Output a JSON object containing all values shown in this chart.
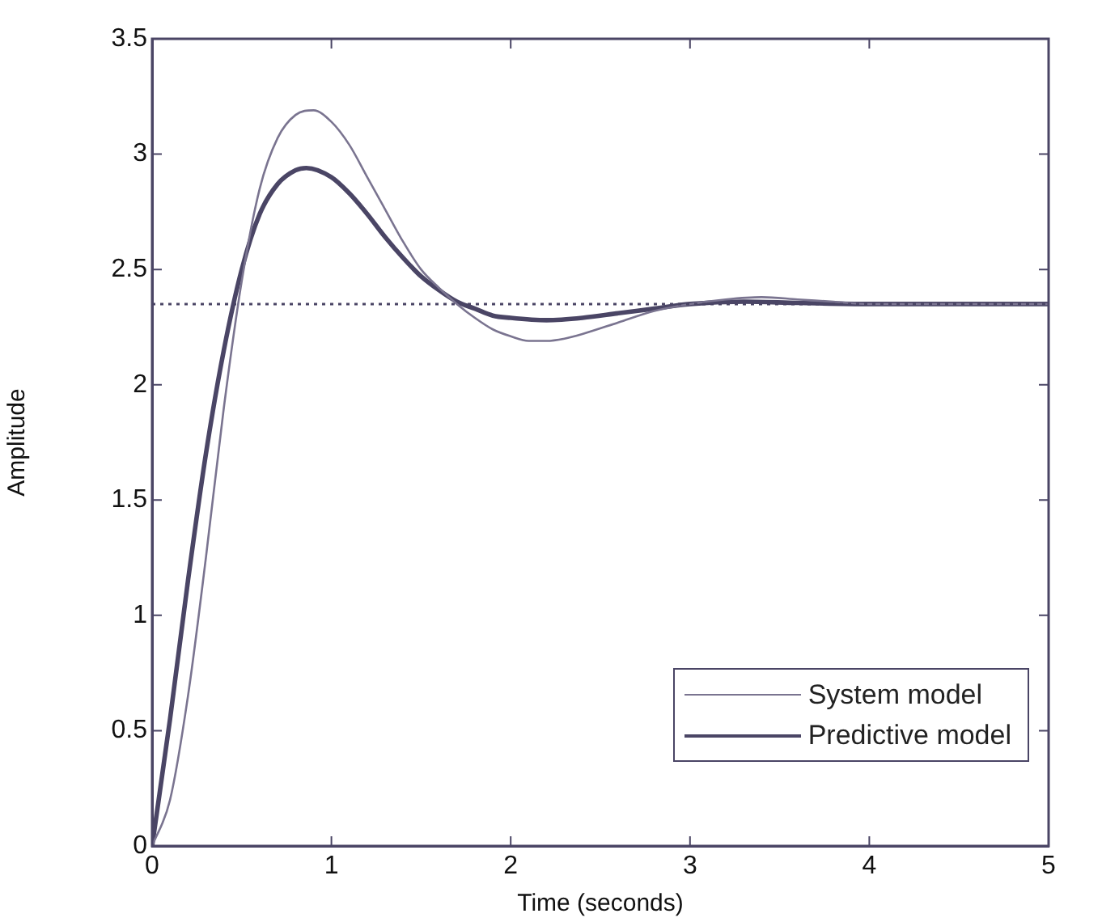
{
  "chart_data": {
    "type": "line",
    "xlabel": "Time (seconds)",
    "ylabel": "Amplitude",
    "xlim": [
      0,
      5
    ],
    "xticks": [
      0,
      1,
      2,
      3,
      4,
      5
    ],
    "ylim": [
      0,
      3.5
    ],
    "yticks": [
      0,
      0.5,
      1,
      1.5,
      2,
      2.5,
      3,
      3.5
    ],
    "grid": false,
    "legend": "bottom right",
    "marker": "none",
    "line_style": "solid",
    "ref_lines": [
      {
        "axis": "y",
        "value": 2.35,
        "line_style": "dotted",
        "color": "#4a4565"
      }
    ],
    "series": [
      {
        "name": "System model",
        "color": "#7a7490",
        "x": [
          0,
          0.1,
          0.2,
          0.3,
          0.4,
          0.5,
          0.6,
          0.7,
          0.8,
          0.9,
          1.0,
          1.1,
          1.2,
          1.3,
          1.4,
          1.5,
          1.6,
          1.7,
          1.8,
          1.9,
          2.0,
          2.1,
          2.2,
          2.3,
          2.4,
          2.6,
          2.8,
          3.0,
          3.2,
          3.4,
          3.6,
          3.8,
          4.0,
          5.0
        ],
        "values": [
          0,
          0.2,
          0.65,
          1.25,
          1.9,
          2.45,
          2.85,
          3.07,
          3.17,
          3.19,
          3.14,
          3.04,
          2.9,
          2.76,
          2.62,
          2.5,
          2.42,
          2.35,
          2.29,
          2.24,
          2.21,
          2.19,
          2.19,
          2.2,
          2.22,
          2.27,
          2.32,
          2.35,
          2.37,
          2.38,
          2.37,
          2.36,
          2.35,
          2.35
        ]
      },
      {
        "name": "Predictive model",
        "color": "#4a4565",
        "x": [
          0,
          0.1,
          0.2,
          0.3,
          0.4,
          0.5,
          0.6,
          0.7,
          0.8,
          0.86,
          1.0,
          1.1,
          1.2,
          1.3,
          1.4,
          1.5,
          1.6,
          1.7,
          1.8,
          1.9,
          2.0,
          2.2,
          2.4,
          2.6,
          2.8,
          3.0,
          3.3,
          3.6,
          4.0,
          5.0
        ],
        "values": [
          0,
          0.55,
          1.15,
          1.7,
          2.15,
          2.5,
          2.74,
          2.87,
          2.93,
          2.94,
          2.9,
          2.83,
          2.74,
          2.64,
          2.55,
          2.47,
          2.41,
          2.36,
          2.33,
          2.3,
          2.29,
          2.28,
          2.29,
          2.31,
          2.33,
          2.35,
          2.36,
          2.355,
          2.35,
          2.35
        ]
      }
    ]
  }
}
